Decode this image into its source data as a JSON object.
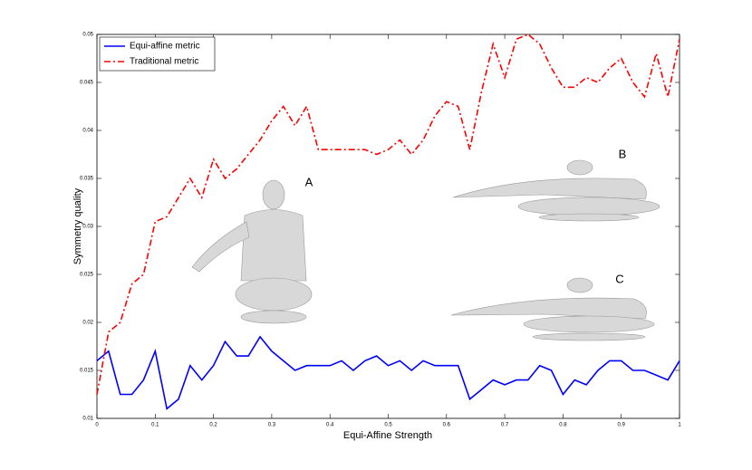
{
  "chart_data": {
    "type": "line",
    "xlabel": "Equi-Affine Strength",
    "ylabel": "Symmetry quality",
    "x": [
      0,
      0.02,
      0.04,
      0.06,
      0.08,
      0.1,
      0.12,
      0.14,
      0.16,
      0.18,
      0.2,
      0.22,
      0.24,
      0.26,
      0.28,
      0.3,
      0.32,
      0.34,
      0.36,
      0.38,
      0.4,
      0.42,
      0.44,
      0.46,
      0.48,
      0.5,
      0.52,
      0.54,
      0.56,
      0.58,
      0.6,
      0.62,
      0.64,
      0.66,
      0.68,
      0.7,
      0.72,
      0.74,
      0.76,
      0.78,
      0.8,
      0.82,
      0.84,
      0.86,
      0.88,
      0.9,
      0.92,
      0.94,
      0.96,
      0.98,
      1
    ],
    "series": [
      {
        "name": "Equi-affine metric",
        "color": "#0000ff",
        "style": "solid",
        "values": [
          0.016,
          0.017,
          0.0125,
          0.0125,
          0.014,
          0.017,
          0.011,
          0.012,
          0.0155,
          0.014,
          0.0155,
          0.018,
          0.0165,
          0.0165,
          0.0185,
          0.017,
          0.016,
          0.015,
          0.0155,
          0.0155,
          0.0155,
          0.016,
          0.015,
          0.016,
          0.0165,
          0.0155,
          0.016,
          0.015,
          0.016,
          0.0155,
          0.0155,
          0.0155,
          0.012,
          0.013,
          0.014,
          0.0135,
          0.014,
          0.014,
          0.0155,
          0.015,
          0.0125,
          0.014,
          0.0135,
          0.015,
          0.016,
          0.016,
          0.015,
          0.015,
          0.0145,
          0.014,
          0.016
        ]
      },
      {
        "name": "Traditional metric",
        "color": "#ff0000",
        "style": "dashdot",
        "values": [
          0.0125,
          0.019,
          0.02,
          0.024,
          0.025,
          0.0305,
          0.031,
          0.033,
          0.035,
          0.033,
          0.037,
          0.035,
          0.036,
          0.0375,
          0.039,
          0.041,
          0.0425,
          0.0405,
          0.0425,
          0.038,
          0.038,
          0.038,
          0.038,
          0.038,
          0.0375,
          0.038,
          0.039,
          0.0375,
          0.039,
          0.0415,
          0.043,
          0.0425,
          0.038,
          0.044,
          0.049,
          0.0455,
          0.0495,
          0.05,
          0.049,
          0.0465,
          0.0445,
          0.0445,
          0.0455,
          0.045,
          0.0465,
          0.0475,
          0.045,
          0.0435,
          0.048,
          0.0435,
          0.0495
        ]
      }
    ],
    "xlim": [
      0,
      1
    ],
    "ylim": [
      0.01,
      0.05
    ],
    "xticks": [
      0,
      0.1,
      0.2,
      0.3,
      0.4,
      0.5,
      0.6,
      0.7,
      0.8,
      0.9,
      1
    ],
    "yticks": [
      0.01,
      0.015,
      0.02,
      0.025,
      0.03,
      0.035,
      0.04,
      0.045,
      0.05
    ],
    "legend": "upper left",
    "grid": false,
    "annotations": [
      "A",
      "B",
      "C"
    ]
  }
}
